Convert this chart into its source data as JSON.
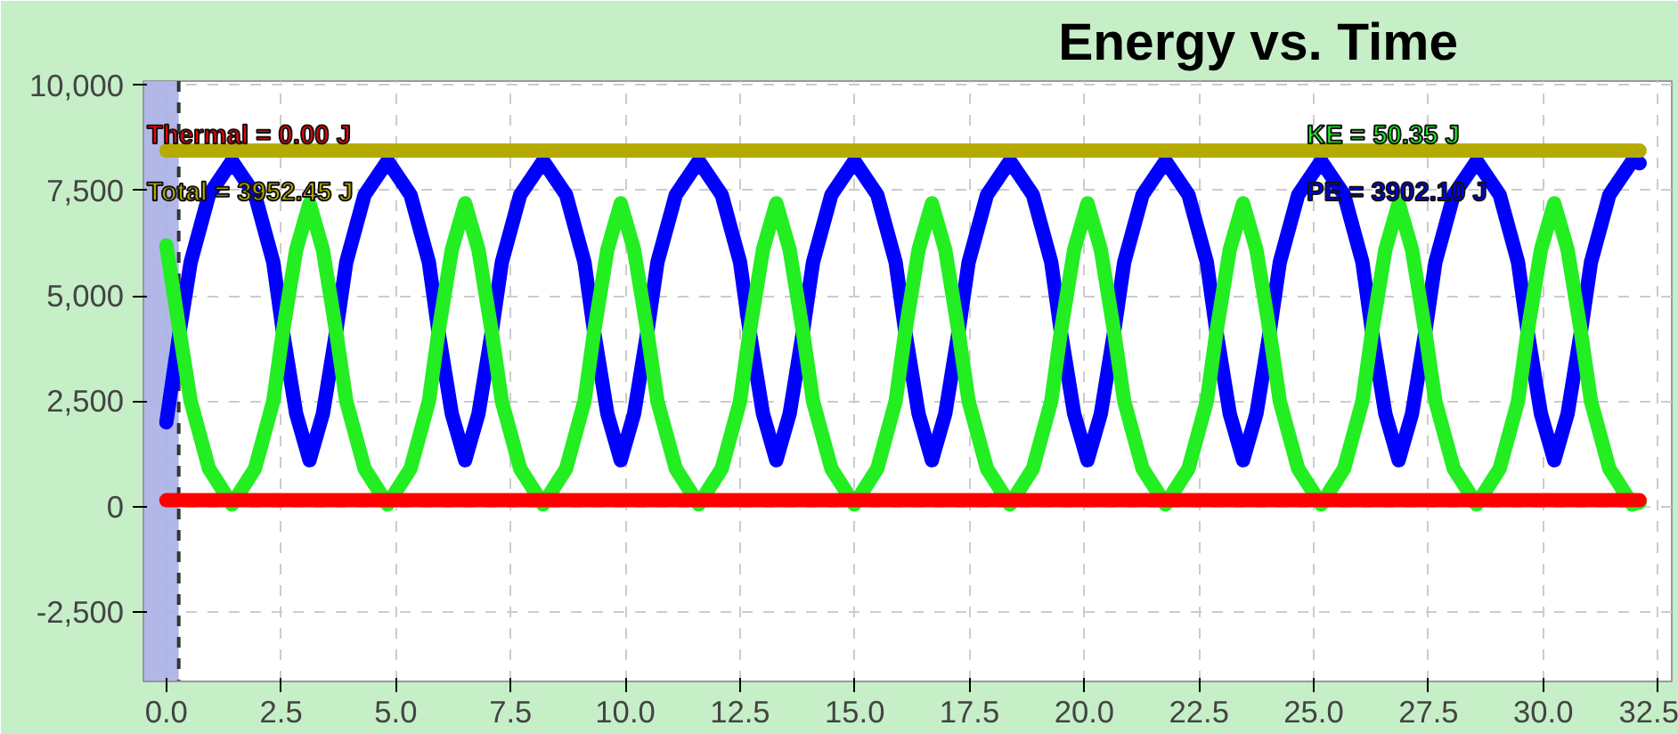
{
  "chart_data": {
    "type": "line",
    "title": "Energy vs. Time",
    "annotations": [
      "PE = 3902.10 J",
      "KE = 50.35 J",
      "Thermal = 0.00 J",
      "Total = 3952.45 J"
    ],
    "x": [
      0,
      0.29,
      0.53,
      0.93,
      1.43,
      1.93,
      2.33,
      2.54,
      2.83,
      3.12,
      3.41,
      3.7,
      3.92,
      4.32,
      4.82,
      5.32,
      5.72,
      5.93,
      6.22,
      6.51,
      6.8,
      7.09,
      7.31,
      7.71,
      8.21,
      8.71,
      9.11,
      9.32,
      9.61,
      9.9,
      10.19,
      10.48,
      10.7,
      11.1,
      11.6,
      12.1,
      12.5,
      12.71,
      13.0,
      13.29,
      13.58,
      13.87,
      14.09,
      14.49,
      14.99,
      15.49,
      15.89,
      16.1,
      16.39,
      16.68,
      16.97,
      17.26,
      17.48,
      17.88,
      18.38,
      18.88,
      19.28,
      19.49,
      19.78,
      20.07,
      20.36,
      20.65,
      20.87,
      21.27,
      21.77,
      22.27,
      22.67,
      22.88,
      23.17,
      23.46,
      23.75,
      24.04,
      24.26,
      24.66,
      25.16,
      25.66,
      26.06,
      26.27,
      26.56,
      26.85,
      27.14,
      27.43,
      27.65,
      28.05,
      28.55,
      29.05,
      29.45,
      29.66,
      29.95,
      30.24,
      30.53,
      30.82,
      31.04,
      31.44,
      31.94,
      32.1
    ],
    "series": [
      {
        "color": "#0000ff",
        "values": [
          2000,
          4150,
          5800,
          7400,
          8200,
          7400,
          5800,
          4150,
          2200,
          1100,
          2200,
          4150,
          5800,
          7400,
          8200,
          7400,
          5800,
          4150,
          2200,
          1100,
          2200,
          4150,
          5800,
          7400,
          8200,
          7400,
          5800,
          4150,
          2200,
          1100,
          2200,
          4150,
          5800,
          7400,
          8200,
          7400,
          5800,
          4150,
          2200,
          1100,
          2200,
          4150,
          5800,
          7400,
          8200,
          7400,
          5800,
          4150,
          2200,
          1100,
          2200,
          4150,
          5800,
          7400,
          8200,
          7400,
          5800,
          4150,
          2200,
          1100,
          2200,
          4150,
          5800,
          7400,
          8200,
          7400,
          5800,
          4150,
          2200,
          1100,
          2200,
          4150,
          5800,
          7400,
          8200,
          7400,
          5800,
          4150,
          2200,
          1100,
          2200,
          4150,
          5800,
          7400,
          8200,
          7400,
          5800,
          4150,
          2200,
          1100,
          2200,
          4150,
          5800,
          7400,
          8200,
          8150
        ]
      },
      {
        "color": "#22ee22",
        "values": [
          6200,
          4150,
          2500,
          900,
          50,
          900,
          2500,
          4150,
          6100,
          7200,
          6100,
          4150,
          2500,
          900,
          50,
          900,
          2500,
          4150,
          6100,
          7200,
          6100,
          4150,
          2500,
          900,
          50,
          900,
          2500,
          4150,
          6100,
          7200,
          6100,
          4150,
          2500,
          900,
          50,
          900,
          2500,
          4150,
          6100,
          7200,
          6100,
          4150,
          2500,
          900,
          50,
          900,
          2500,
          4150,
          6100,
          7200,
          6100,
          4150,
          2500,
          900,
          50,
          900,
          2500,
          4150,
          6100,
          7200,
          6100,
          4150,
          2500,
          900,
          50,
          900,
          2500,
          4150,
          6100,
          7200,
          6100,
          4150,
          2500,
          900,
          50,
          900,
          2500,
          4150,
          6100,
          7200,
          6100,
          4150,
          2500,
          900,
          50,
          900,
          2500,
          4150,
          6100,
          7200,
          6100,
          4150,
          2500,
          900,
          50,
          100
        ]
      },
      {
        "color": "#ff0000",
        "values": [
          150,
          150,
          150,
          150,
          150,
          150,
          150,
          150,
          150,
          150,
          150,
          150,
          150,
          150,
          150,
          150,
          150,
          150,
          150,
          150,
          150,
          150,
          150,
          150,
          150,
          150,
          150,
          150,
          150,
          150,
          150,
          150,
          150,
          150,
          150,
          150,
          150,
          150,
          150,
          150,
          150,
          150,
          150,
          150,
          150,
          150,
          150,
          150,
          150,
          150,
          150,
          150,
          150,
          150,
          150,
          150,
          150,
          150,
          150,
          150,
          150,
          150,
          150,
          150,
          150,
          150,
          150,
          150,
          150,
          150,
          150,
          150,
          150,
          150,
          150,
          150,
          150,
          150,
          150,
          150,
          150,
          150,
          150,
          150,
          150,
          150,
          150,
          150,
          150,
          150,
          150,
          150,
          150,
          150,
          150,
          150
        ]
      },
      {
        "color": "#b5aa00",
        "values": [
          8450,
          8450,
          8450,
          8450,
          8450,
          8450,
          8450,
          8450,
          8450,
          8450,
          8450,
          8450,
          8450,
          8450,
          8450,
          8450,
          8450,
          8450,
          8450,
          8450,
          8450,
          8450,
          8450,
          8450,
          8450,
          8450,
          8450,
          8450,
          8450,
          8450,
          8450,
          8450,
          8450,
          8450,
          8450,
          8450,
          8450,
          8450,
          8450,
          8450,
          8450,
          8450,
          8450,
          8450,
          8450,
          8450,
          8450,
          8450,
          8450,
          8450,
          8450,
          8450,
          8450,
          8450,
          8450,
          8450,
          8450,
          8450,
          8450,
          8450,
          8450,
          8450,
          8450,
          8450,
          8450,
          8450,
          8450,
          8450,
          8450,
          8450,
          8450,
          8450,
          8450,
          8450,
          8450,
          8450,
          8450,
          8450,
          8450,
          8450,
          8450,
          8450,
          8450,
          8450,
          8450,
          8450,
          8450,
          8450,
          8450,
          8450,
          8450,
          8450,
          8450,
          8450,
          8450,
          8450
        ]
      }
    ],
    "bands": [
      {
        "axis": "x",
        "from": -0.5,
        "to": 0.27,
        "color": "#a8b0e6"
      }
    ],
    "ref_lines": [
      {
        "axis": "x",
        "value": 0.27,
        "line_style": "dashed",
        "color": "#333333"
      }
    ],
    "xlim": [
      -0.5,
      32.8
    ],
    "ylim": [
      -4150,
      10100
    ],
    "xticks": [
      {
        "value": 0,
        "label": "0.0"
      },
      {
        "value": 2.5,
        "label": "2.5"
      },
      {
        "value": 5,
        "label": "5.0"
      },
      {
        "value": 7.5,
        "label": "7.5"
      },
      {
        "value": 10,
        "label": "10.0"
      },
      {
        "value": 12.5,
        "label": "12.5"
      },
      {
        "value": 15,
        "label": "15.0"
      },
      {
        "value": 17.5,
        "label": "17.5"
      },
      {
        "value": 20,
        "label": "20.0"
      },
      {
        "value": 22.5,
        "label": "22.5"
      },
      {
        "value": 25,
        "label": "25.0"
      },
      {
        "value": 27.5,
        "label": "27.5"
      },
      {
        "value": 30,
        "label": "30.0"
      },
      {
        "value": 32.5,
        "label": "32.5"
      }
    ],
    "yticks": [
      {
        "value": -2500,
        "label": "-2,500"
      },
      0,
      {
        "value": 2500,
        "label": "2,500"
      },
      {
        "value": 5000,
        "label": "5,000"
      },
      {
        "value": 7500,
        "label": "7,500"
      },
      {
        "value": 10000,
        "label": "10,000"
      }
    ],
    "grid": true,
    "line_style": "solid"
  }
}
